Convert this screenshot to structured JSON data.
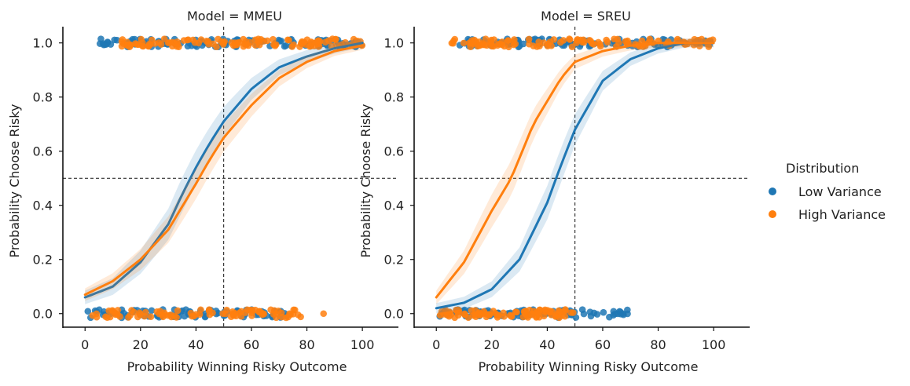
{
  "chart_data": [
    {
      "type": "scatter",
      "title": "Model = MMEU",
      "xlabel": "Probability Winning Risky Outcome",
      "ylabel": "Probability Choose Risky",
      "xlim": [
        -8,
        113
      ],
      "ylim": [
        -0.05,
        1.06
      ],
      "xticks": [
        0,
        20,
        40,
        60,
        80,
        100
      ],
      "yticks": [
        0.0,
        0.2,
        0.4,
        0.6,
        0.8,
        1.0
      ],
      "ref_lines": {
        "x": 50,
        "y": 0.5
      },
      "series": [
        {
          "name": "Low Variance",
          "color": "#1f77b4",
          "curve": [
            [
              0,
              0.06
            ],
            [
              10,
              0.1
            ],
            [
              20,
              0.19
            ],
            [
              30,
              0.33
            ],
            [
              35,
              0.44
            ],
            [
              40,
              0.54
            ],
            [
              45,
              0.63
            ],
            [
              50,
              0.71
            ],
            [
              60,
              0.83
            ],
            [
              70,
              0.91
            ],
            [
              80,
              0.95
            ],
            [
              90,
              0.98
            ],
            [
              100,
              1.0
            ]
          ],
          "band": 0.04,
          "points_y0": {
            "x_min": 0,
            "x_max": 74
          },
          "points_y1": {
            "x_min": 5,
            "x_max": 100
          }
        },
        {
          "name": "High Variance",
          "color": "#ff7f0e",
          "curve": [
            [
              0,
              0.07
            ],
            [
              10,
              0.12
            ],
            [
              20,
              0.2
            ],
            [
              30,
              0.31
            ],
            [
              40,
              0.48
            ],
            [
              45,
              0.57
            ],
            [
              50,
              0.65
            ],
            [
              60,
              0.77
            ],
            [
              70,
              0.87
            ],
            [
              80,
              0.93
            ],
            [
              90,
              0.97
            ],
            [
              100,
              0.99
            ]
          ],
          "band": 0.035,
          "points_y0": {
            "x_min": 0,
            "x_max": 78,
            "extra": [
              86
            ]
          },
          "points_y1": {
            "x_min": 8,
            "x_max": 100
          }
        }
      ]
    },
    {
      "type": "scatter",
      "title": "Model = SREU",
      "xlabel": "Probability Winning Risky Outcome",
      "ylabel": "Probability Choose Risky",
      "xlim": [
        -8,
        113
      ],
      "ylim": [
        -0.05,
        1.06
      ],
      "xticks": [
        0,
        20,
        40,
        60,
        80,
        100
      ],
      "yticks": [
        0.0,
        0.2,
        0.4,
        0.6,
        0.8,
        1.0
      ],
      "ref_lines": {
        "x": 50,
        "y": 0.5
      },
      "series": [
        {
          "name": "Low Variance",
          "color": "#1f77b4",
          "curve": [
            [
              0,
              0.02
            ],
            [
              10,
              0.04
            ],
            [
              20,
              0.09
            ],
            [
              30,
              0.2
            ],
            [
              40,
              0.41
            ],
            [
              45,
              0.55
            ],
            [
              50,
              0.68
            ],
            [
              60,
              0.86
            ],
            [
              70,
              0.94
            ],
            [
              80,
              0.98
            ],
            [
              90,
              1.0
            ],
            [
              100,
              1.0
            ]
          ],
          "band": 0.04,
          "points_y0": {
            "x_min": 0,
            "x_max": 70
          },
          "points_y1": {
            "x_min": 8,
            "x_max": 100
          }
        },
        {
          "name": "High Variance",
          "color": "#ff7f0e",
          "curve": [
            [
              0,
              0.06
            ],
            [
              10,
              0.19
            ],
            [
              20,
              0.38
            ],
            [
              27,
              0.5
            ],
            [
              35,
              0.7
            ],
            [
              45,
              0.87
            ],
            [
              50,
              0.93
            ],
            [
              60,
              0.97
            ],
            [
              70,
              0.99
            ],
            [
              80,
              1.0
            ],
            [
              90,
              1.0
            ],
            [
              100,
              1.0
            ]
          ],
          "band": 0.04,
          "points_y0": {
            "x_min": 0,
            "x_max": 50
          },
          "points_y1": {
            "x_min": 5,
            "x_max": 100
          }
        }
      ]
    }
  ],
  "legend": {
    "title": "Distribution",
    "items": [
      {
        "label": "Low Variance",
        "color": "#1f77b4"
      },
      {
        "label": "High Variance",
        "color": "#ff7f0e"
      }
    ]
  }
}
